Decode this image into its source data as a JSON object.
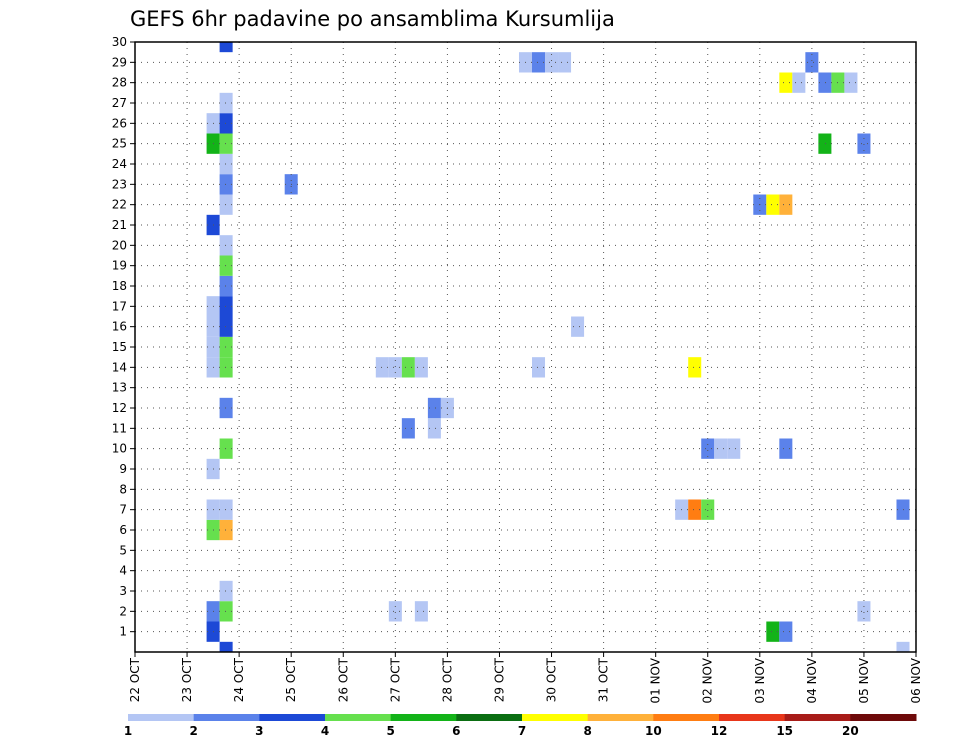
{
  "chart_data": {
    "type": "heatmap",
    "title": "GEFS 6hr padavine po ansamblima Kursumlija",
    "x_labels": [
      "22 OCT",
      "23 OCT",
      "24 OCT",
      "25 OCT",
      "26 OCT",
      "27 OCT",
      "28 OCT",
      "29 OCT",
      "30 OCT",
      "31 OCT",
      "01 NOV",
      "02 NOV",
      "03 NOV",
      "04 NOV",
      "05 NOV",
      "06 NOV"
    ],
    "y_labels": [
      "1",
      "2",
      "3",
      "4",
      "5",
      "6",
      "7",
      "8",
      "9",
      "10",
      "11",
      "12",
      "13",
      "14",
      "15",
      "16",
      "17",
      "18",
      "19",
      "20",
      "21",
      "22",
      "23",
      "24",
      "25",
      "26",
      "27",
      "28",
      "29",
      "30"
    ],
    "xlim_days": [
      0,
      15
    ],
    "ylim": [
      0,
      30
    ],
    "step_days": 0.25,
    "grid": true,
    "legend": {
      "placement": "bottom",
      "colors": [
        "#b4c6f4",
        "#5b82ea",
        "#1d49d6",
        "#66e04e",
        "#13b318",
        "#0b6e12",
        "#ffff00",
        "#ffb13a",
        "#ff7d12",
        "#e8361a",
        "#a81c18",
        "#6e0a0a"
      ],
      "labels": [
        "1",
        "2",
        "3",
        "4",
        "5",
        "6",
        "7",
        "8",
        "10",
        "12",
        "15",
        "20"
      ]
    },
    "cells": [
      {
        "t": 1.75,
        "m": 0,
        "c": 3
      },
      {
        "t": 1.5,
        "m": 1,
        "c": 3
      },
      {
        "t": 1.5,
        "m": 2,
        "c": 2
      },
      {
        "t": 1.75,
        "m": 2,
        "c": 4
      },
      {
        "t": 1.75,
        "m": 3,
        "c": 1
      },
      {
        "t": 1.5,
        "m": 6,
        "c": 4
      },
      {
        "t": 1.75,
        "m": 6,
        "c": 8
      },
      {
        "t": 1.5,
        "m": 7,
        "c": 1
      },
      {
        "t": 1.75,
        "m": 7,
        "c": 1
      },
      {
        "t": 1.5,
        "m": 9,
        "c": 1
      },
      {
        "t": 1.75,
        "m": 10,
        "c": 4
      },
      {
        "t": 1.75,
        "m": 12,
        "c": 2
      },
      {
        "t": 1.5,
        "m": 14,
        "c": 1
      },
      {
        "t": 1.5,
        "m": 15,
        "c": 1
      },
      {
        "t": 1.75,
        "m": 14,
        "c": 4
      },
      {
        "t": 1.75,
        "m": 15,
        "c": 4
      },
      {
        "t": 1.5,
        "m": 16,
        "c": 1
      },
      {
        "t": 1.5,
        "m": 17,
        "c": 1
      },
      {
        "t": 1.75,
        "m": 16,
        "c": 3
      },
      {
        "t": 1.75,
        "m": 17,
        "c": 3
      },
      {
        "t": 1.75,
        "m": 18,
        "c": 2
      },
      {
        "t": 1.75,
        "m": 19,
        "c": 4
      },
      {
        "t": 1.75,
        "m": 20,
        "c": 1
      },
      {
        "t": 1.5,
        "m": 21,
        "c": 3
      },
      {
        "t": 1.75,
        "m": 22,
        "c": 1
      },
      {
        "t": 1.75,
        "m": 23,
        "c": 2
      },
      {
        "t": 1.75,
        "m": 24,
        "c": 1
      },
      {
        "t": 1.5,
        "m": 25,
        "c": 5
      },
      {
        "t": 1.75,
        "m": 25,
        "c": 4
      },
      {
        "t": 1.5,
        "m": 26,
        "c": 1
      },
      {
        "t": 1.75,
        "m": 26,
        "c": 3
      },
      {
        "t": 1.75,
        "m": 27,
        "c": 1
      },
      {
        "t": 1.75,
        "m": 30,
        "c": 3
      },
      {
        "t": 3.0,
        "m": 23,
        "c": 2
      },
      {
        "t": 5.0,
        "m": 2,
        "c": 1
      },
      {
        "t": 5.5,
        "m": 2,
        "c": 1
      },
      {
        "t": 4.75,
        "m": 14,
        "c": 1
      },
      {
        "t": 5.0,
        "m": 14,
        "c": 1
      },
      {
        "t": 5.25,
        "m": 14,
        "c": 4
      },
      {
        "t": 5.5,
        "m": 14,
        "c": 1
      },
      {
        "t": 5.25,
        "m": 11,
        "c": 2
      },
      {
        "t": 5.75,
        "m": 11,
        "c": 1
      },
      {
        "t": 5.75,
        "m": 12,
        "c": 2
      },
      {
        "t": 6.0,
        "m": 12,
        "c": 1
      },
      {
        "t": 7.5,
        "m": 29,
        "c": 1
      },
      {
        "t": 7.75,
        "m": 29,
        "c": 2
      },
      {
        "t": 8.0,
        "m": 29,
        "c": 1
      },
      {
        "t": 8.25,
        "m": 29,
        "c": 1
      },
      {
        "t": 7.75,
        "m": 14,
        "c": 1
      },
      {
        "t": 8.5,
        "m": 16,
        "c": 1
      },
      {
        "t": 10.5,
        "m": 7,
        "c": 1
      },
      {
        "t": 10.75,
        "m": 7,
        "c": 9
      },
      {
        "t": 11.0,
        "m": 7,
        "c": 4
      },
      {
        "t": 10.75,
        "m": 14,
        "c": 7
      },
      {
        "t": 11.0,
        "m": 10,
        "c": 2
      },
      {
        "t": 11.25,
        "m": 10,
        "c": 1
      },
      {
        "t": 11.5,
        "m": 10,
        "c": 1
      },
      {
        "t": 12.0,
        "m": 22,
        "c": 2
      },
      {
        "t": 12.25,
        "m": 22,
        "c": 7
      },
      {
        "t": 12.5,
        "m": 22,
        "c": 8
      },
      {
        "t": 12.5,
        "m": 10,
        "c": 2
      },
      {
        "t": 12.25,
        "m": 1,
        "c": 5
      },
      {
        "t": 12.5,
        "m": 1,
        "c": 2
      },
      {
        "t": 12.5,
        "m": 28,
        "c": 7
      },
      {
        "t": 12.75,
        "m": 28,
        "c": 1
      },
      {
        "t": 13.0,
        "m": 29,
        "c": 2
      },
      {
        "t": 13.25,
        "m": 28,
        "c": 2
      },
      {
        "t": 13.5,
        "m": 28,
        "c": 4
      },
      {
        "t": 13.75,
        "m": 28,
        "c": 1
      },
      {
        "t": 13.25,
        "m": 25,
        "c": 5
      },
      {
        "t": 14.0,
        "m": 25,
        "c": 2
      },
      {
        "t": 14.0,
        "m": 2,
        "c": 1
      },
      {
        "t": 14.75,
        "m": 7,
        "c": 2
      },
      {
        "t": 14.75,
        "m": 0,
        "c": 1
      }
    ]
  }
}
